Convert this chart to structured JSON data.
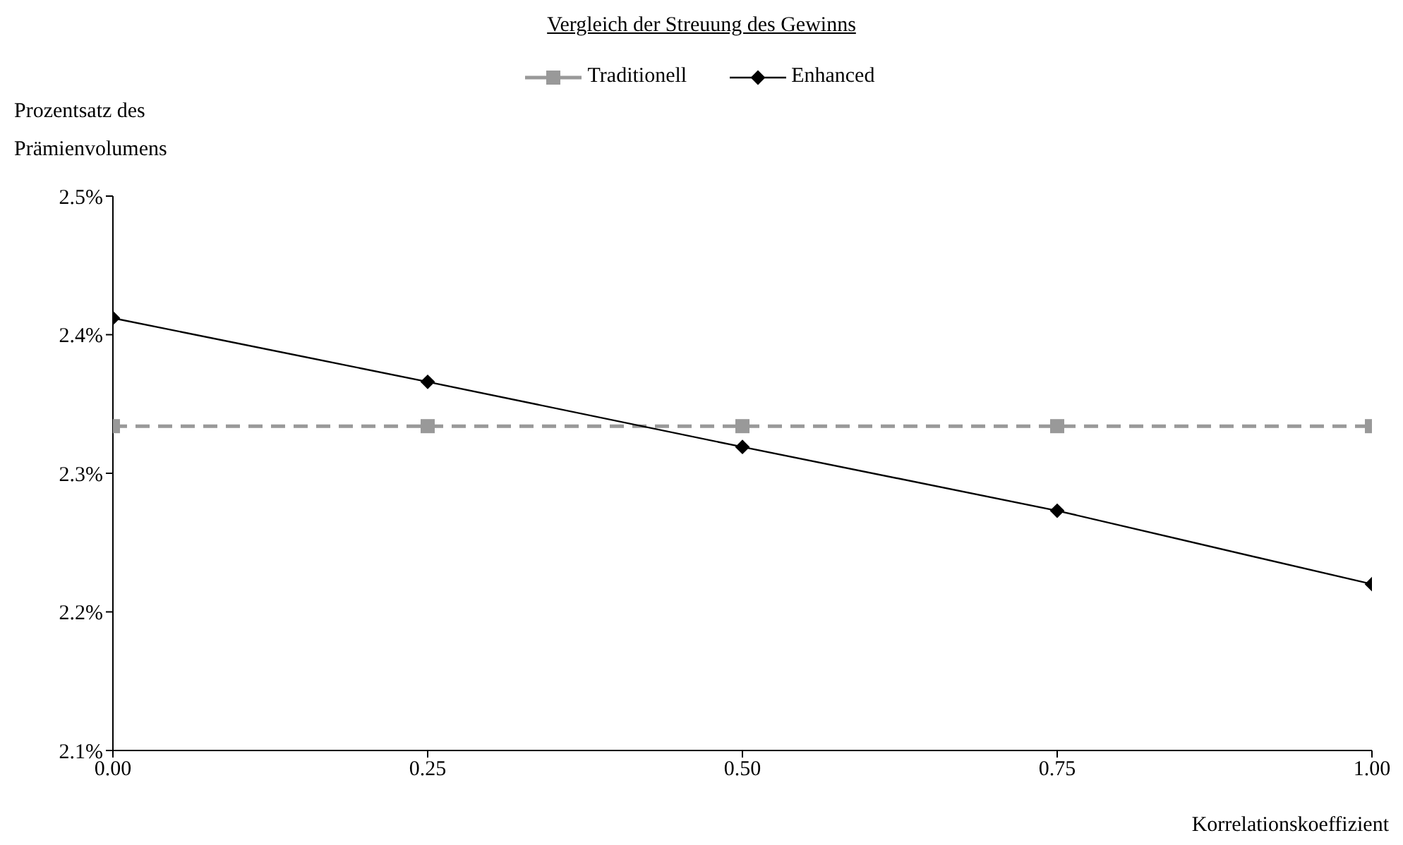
{
  "chart_data": {
    "type": "line",
    "title": "Vergleich der Streuung des Gewinns",
    "xlabel": "Korrelationskoeffizient",
    "ylabel": "Prozentsatz des\nPrämienvolumens",
    "x": [
      0,
      0.25,
      0.5,
      0.75,
      1
    ],
    "series": [
      {
        "name": "Traditionell",
        "color": "#999999",
        "marker": "square",
        "line_style": "dashed",
        "values": [
          2.334,
          2.334,
          2.334,
          2.334,
          2.334
        ]
      },
      {
        "name": "Enhanced",
        "color": "#000000",
        "marker": "diamond",
        "line_style": "solid",
        "values": [
          2.412,
          2.366,
          2.319,
          2.273,
          2.22
        ]
      }
    ],
    "xlim": [
      0,
      1
    ],
    "xticks": [
      {
        "value": 0,
        "label": "0.00"
      },
      {
        "value": 0.25,
        "label": "0.25"
      },
      {
        "value": 0.5,
        "label": "0.50"
      },
      {
        "value": 0.75,
        "label": "0.75"
      },
      {
        "value": 1,
        "label": "1.00"
      }
    ],
    "ylim": [
      2.1,
      2.5
    ],
    "yticks": [
      {
        "value": 2.1,
        "label": "2.1%"
      },
      {
        "value": 2.2,
        "label": "2.2%"
      },
      {
        "value": 2.3,
        "label": "2.3%"
      },
      {
        "value": 2.4,
        "label": "2.4%"
      },
      {
        "value": 2.5,
        "label": "2.5%"
      }
    ],
    "grid": false,
    "legend": "top"
  }
}
